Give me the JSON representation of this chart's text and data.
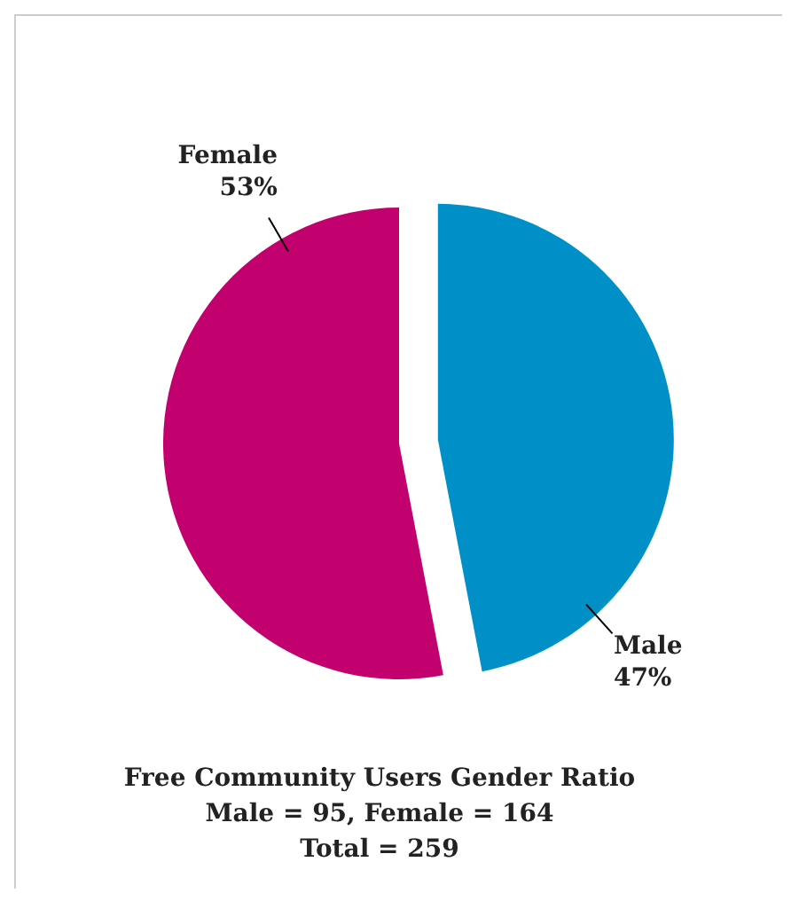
{
  "chart_data": {
    "type": "pie",
    "title": "Free Community Users Gender Ratio",
    "annotations": [
      "Male = 95, Female = 164",
      "Total = 259"
    ],
    "categories": [
      "Male",
      "Female"
    ],
    "values": [
      47,
      53
    ],
    "value_labels": [
      "47%",
      "53%"
    ],
    "colors": [
      "#0090c8",
      "#c2006e"
    ],
    "legend": false
  }
}
